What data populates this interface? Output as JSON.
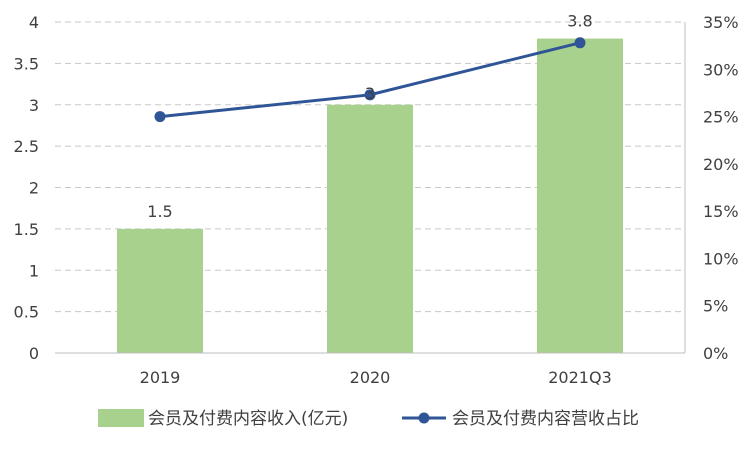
{
  "chart_data": {
    "type": "bar",
    "categories": [
      "2019",
      "2020",
      "2021Q3"
    ],
    "series": [
      {
        "name": "会员及付费内容收入(亿元)",
        "type": "bar",
        "axis": "left",
        "values": [
          1.5,
          3,
          3.8
        ],
        "data_labels": [
          "1.5",
          "3",
          "3.8"
        ],
        "color": "#a9d18e"
      },
      {
        "name": "会员及付费内容营收占比",
        "type": "line",
        "axis": "right",
        "values": [
          25,
          27.3,
          32.8
        ],
        "color": "#2f5597"
      }
    ],
    "y_left": {
      "ylim": [
        0,
        4
      ],
      "ticks": [
        "0",
        "0.5",
        "1",
        "1.5",
        "2",
        "2.5",
        "3",
        "3.5",
        "4"
      ]
    },
    "y_right": {
      "ylim": [
        0,
        35
      ],
      "ticks": [
        "0%",
        "5%",
        "10%",
        "15%",
        "20%",
        "25%",
        "30%",
        "35%"
      ]
    },
    "title": "",
    "xlabel": "",
    "ylabel": "",
    "grid": true,
    "legend_position": "bottom"
  }
}
